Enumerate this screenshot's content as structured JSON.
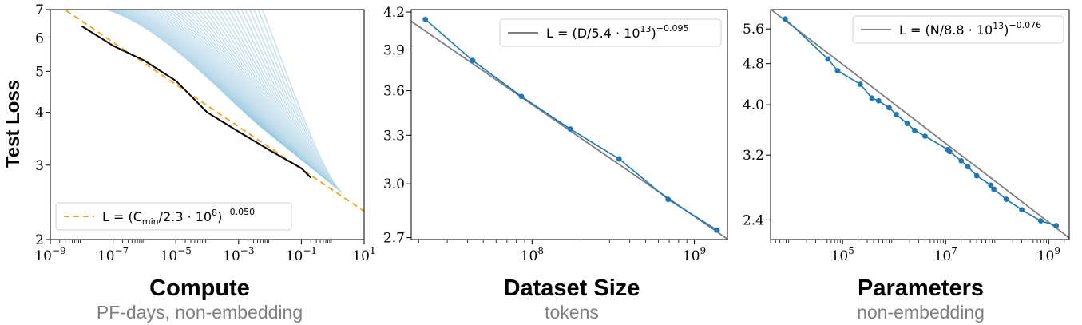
{
  "chart_data": [
    {
      "type": "line",
      "scale": {
        "x": "log",
        "y": "log"
      },
      "ylabel": "Test Loss",
      "xlabel": "Compute",
      "subtitle": "PF-days, non-embedding",
      "xlim": [
        1e-09,
        10
      ],
      "ylim": [
        2,
        7
      ],
      "x_ticks": [
        {
          "value": 1e-09,
          "base": "10",
          "exp": "−9"
        },
        {
          "value": 1e-07,
          "base": "10",
          "exp": "−7"
        },
        {
          "value": 1e-05,
          "base": "10",
          "exp": "−5"
        },
        {
          "value": 0.001,
          "base": "10",
          "exp": "−3"
        },
        {
          "value": 0.1,
          "base": "10",
          "exp": "−1"
        },
        {
          "value": 10,
          "base": "10",
          "exp": "1"
        }
      ],
      "y_ticks": [
        {
          "value": 2,
          "label": "2"
        },
        {
          "value": 3,
          "label": "3"
        },
        {
          "value": 4,
          "label": "4"
        },
        {
          "value": 5,
          "label": "5"
        },
        {
          "value": 6,
          "label": "6"
        },
        {
          "value": 7,
          "label": "7"
        }
      ],
      "fit": {
        "scale": 230000000.0,
        "exponent": -0.05,
        "color": "#f5a623"
      },
      "legend": {
        "position": "lower-left",
        "pre": "L = (C",
        "sub": "min",
        "mid": "/2.3 · 10",
        "sup1": "8",
        "post": ")",
        "sup2": "−0.050"
      },
      "frontier": {
        "color": "#000000",
        "x": [
          1e-08,
          1e-07,
          1e-06,
          1e-05,
          0.0001,
          0.001,
          0.01,
          0.1,
          0.2
        ],
        "y": [
          6.4,
          5.75,
          5.3,
          4.75,
          4.0,
          3.6,
          3.25,
          2.95,
          2.8
        ]
      },
      "runs": {
        "color": "#9ecae1",
        "count": 44
      }
    },
    {
      "type": "line",
      "scale": {
        "x": "log",
        "y": "log"
      },
      "xlabel": "Dataset Size",
      "subtitle": "tokens",
      "xlim": [
        18000000.0,
        1600000000.0
      ],
      "ylim": [
        2.69,
        4.22
      ],
      "x_ticks": [
        {
          "value": 100000000.0,
          "base": "10",
          "exp": "8"
        },
        {
          "value": 1000000000.0,
          "base": "10",
          "exp": "9"
        }
      ],
      "y_ticks": [
        {
          "value": 2.7,
          "label": "2.7"
        },
        {
          "value": 3.0,
          "label": "3.0"
        },
        {
          "value": 3.3,
          "label": "3.3"
        },
        {
          "value": 3.6,
          "label": "3.6"
        },
        {
          "value": 3.9,
          "label": "3.9"
        },
        {
          "value": 4.2,
          "label": "4.2"
        }
      ],
      "fit": {
        "scale": 54000000000000.0,
        "exponent": -0.095,
        "color": "#7f7f7f"
      },
      "legend": {
        "position": "upper-right",
        "pre": "L = (D/5.4 · 10",
        "sup1": "13",
        "post": ")",
        "sup2": "−0.095"
      },
      "series": [
        {
          "name": "",
          "color": "#1f77b4",
          "x": [
            22000000.0,
            43000000.0,
            86000000.0,
            172000000.0,
            344000000.0,
            690000000.0,
            1380000000.0
          ],
          "y": [
            4.14,
            3.82,
            3.56,
            3.34,
            3.15,
            2.91,
            2.74
          ]
        }
      ]
    },
    {
      "type": "line",
      "scale": {
        "x": "log",
        "y": "log"
      },
      "xlabel": "Parameters",
      "subtitle": "non-embedding",
      "xlim": [
        4000.0,
        2500000000.0
      ],
      "ylim": [
        2.2,
        6.1
      ],
      "x_ticks": [
        {
          "value": 100000.0,
          "base": "10",
          "exp": "5"
        },
        {
          "value": 10000000.0,
          "base": "10",
          "exp": "7"
        },
        {
          "value": 1000000000.0,
          "base": "10",
          "exp": "9"
        }
      ],
      "y_ticks": [
        {
          "value": 2.4,
          "label": "2.4"
        },
        {
          "value": 3.2,
          "label": "3.2"
        },
        {
          "value": 4.0,
          "label": "4.0"
        },
        {
          "value": 4.8,
          "label": "4.8"
        },
        {
          "value": 5.6,
          "label": "5.6"
        }
      ],
      "fit": {
        "scale": 88000000000000.0,
        "exponent": -0.076,
        "color": "#7f7f7f"
      },
      "legend": {
        "position": "upper-right",
        "pre": "L = (N/8.8 · 10",
        "sup1": "13",
        "post": ")",
        "sup2": "−0.076"
      },
      "series": [
        {
          "name": "",
          "color": "#1f77b4",
          "x": [
            7700.0,
            52000.0,
            80000.0,
            220000.0,
            370000.0,
            500000.0,
            800000.0,
            1100000.0,
            1800000.0,
            2500000.0,
            4000000.0,
            11000000.0,
            12000000.0,
            20000000.0,
            27000000.0,
            40000000.0,
            75000000.0,
            86000000.0,
            150000000.0,
            300000000.0,
            700000000.0,
            1400000000.0
          ],
          "y": [
            5.85,
            4.9,
            4.65,
            4.38,
            4.12,
            4.07,
            3.95,
            3.83,
            3.68,
            3.57,
            3.48,
            3.28,
            3.25,
            3.12,
            3.04,
            2.92,
            2.8,
            2.75,
            2.63,
            2.51,
            2.39,
            2.34
          ]
        }
      ]
    }
  ]
}
